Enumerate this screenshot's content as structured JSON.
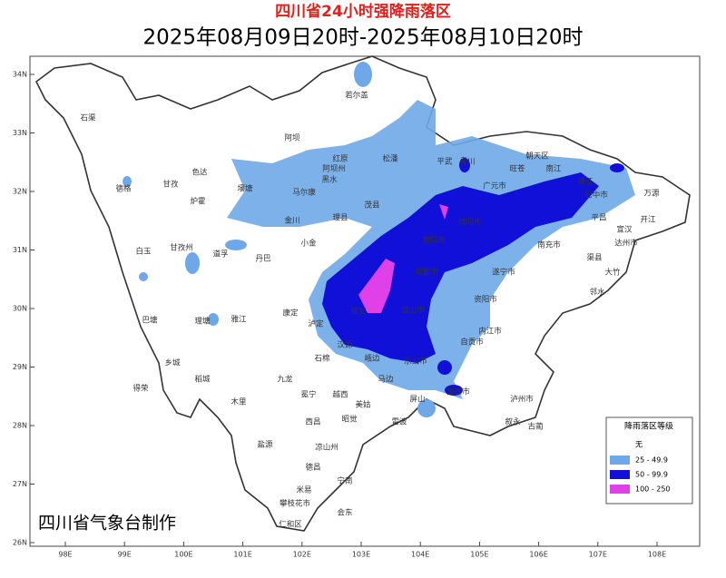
{
  "header": {
    "title": "四川省24小时强降雨落区",
    "subtitle": "2025年08月09日20时-2025年08月10日20时"
  },
  "map": {
    "lat_labels": [
      "34N",
      "33N",
      "32N",
      "31N",
      "30N",
      "29N",
      "28N",
      "27N",
      "26N"
    ],
    "lon_labels": [
      "98E",
      "99E",
      "100E",
      "101E",
      "102E",
      "103E",
      "104E",
      "105E",
      "106E",
      "107E",
      "108E"
    ],
    "places": [
      "石渠",
      "德格",
      "甘孜",
      "色达",
      "白玉",
      "甘孜州",
      "炉霍",
      "道孚",
      "巴塘",
      "理塘",
      "雅江",
      "乡城",
      "稻城",
      "得荣",
      "九龙",
      "木里",
      "康定",
      "泸定",
      "丹巴",
      "小金",
      "金川",
      "壤塘",
      "马尔康",
      "阿坝",
      "若尔盖",
      "红原",
      "阿坝州",
      "黑水",
      "松潘",
      "理县",
      "茂县",
      "平武",
      "青川",
      "广元市",
      "朝天区",
      "旺苍",
      "南江",
      "通江",
      "巴中市",
      "万源",
      "宣汉",
      "达州市",
      "开江",
      "平昌",
      "大竹",
      "渠县",
      "邻水",
      "南充市",
      "遂宁市",
      "资阳市",
      "成都市",
      "德阳市",
      "绵阳市",
      "眉山市",
      "雅安",
      "乐山市",
      "内江市",
      "自贡市",
      "宜宾市",
      "泸州市",
      "叙永",
      "古蔺",
      "屏山",
      "马边",
      "峨边",
      "石棉",
      "汉源",
      "冕宁",
      "越西",
      "美姑",
      "昭觉",
      "雷波",
      "西昌",
      "凉山州",
      "盐源",
      "德昌",
      "宁南",
      "会东",
      "米易",
      "攀枝花市",
      "仁和区"
    ],
    "credit": "四川省气象台制作"
  },
  "legend": {
    "title": "降雨落区等级",
    "items": [
      "无",
      "25 - 49.9",
      "50 - 99.9",
      "100 - 250"
    ]
  }
}
